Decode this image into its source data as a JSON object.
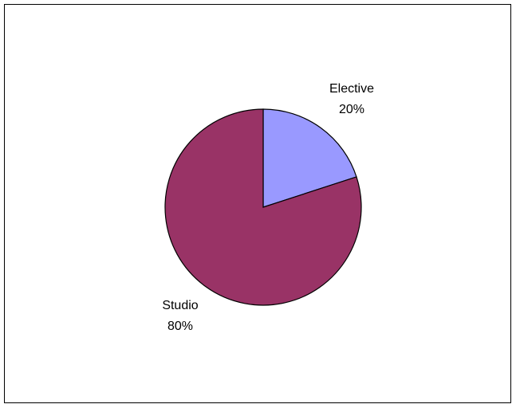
{
  "chart_data": {
    "type": "pie",
    "title": "",
    "slices": [
      {
        "name": "Elective",
        "value": 20,
        "label": "20%",
        "color": "#9999ff"
      },
      {
        "name": "Studio",
        "value": 80,
        "label": "80%",
        "color": "#993366"
      }
    ],
    "start_angle_deg": 0,
    "direction": "clockwise",
    "legend": "none"
  }
}
